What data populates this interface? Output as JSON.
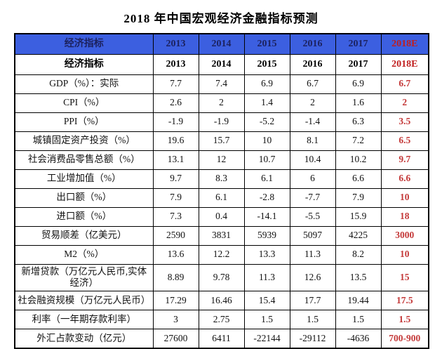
{
  "title": "2018 年中国宏观经济金融指标预测",
  "colors": {
    "header_background": "#3C5FE0",
    "header_text_navy": "#1C2260",
    "forecast_header_red": "#C01E1E",
    "forecast_value_red": "#C43939",
    "border_black": "#000000"
  },
  "chart_data": {
    "type": "table",
    "title": "2018 年中国宏观经济金融指标预测",
    "columns": [
      "经济指标",
      "2013",
      "2014",
      "2015",
      "2016",
      "2017",
      "2018E"
    ],
    "header_repeated": true,
    "forecast_column": "2018E",
    "rows": [
      {
        "label": "GDP（%）：实际",
        "values": [
          "7.7",
          "7.4",
          "6.9",
          "6.7",
          "6.9"
        ],
        "forecast": "6.7"
      },
      {
        "label": "CPI（%）",
        "values": [
          "2.6",
          "2",
          "1.4",
          "2",
          "1.6"
        ],
        "forecast": "2"
      },
      {
        "label": "PPI（%）",
        "values": [
          "-1.9",
          "-1.9",
          "-5.2",
          "-1.4",
          "6.3"
        ],
        "forecast": "3.5"
      },
      {
        "label": "城镇固定资产投资（%）",
        "values": [
          "19.6",
          "15.7",
          "10",
          "8.1",
          "7.2"
        ],
        "forecast": "6.5"
      },
      {
        "label": "社会消费品零售总额（%）",
        "values": [
          "13.1",
          "12",
          "10.7",
          "10.4",
          "10.2"
        ],
        "forecast": "9.7"
      },
      {
        "label": "工业增加值（%）",
        "values": [
          "9.7",
          "8.3",
          "6.1",
          "6",
          "6.6"
        ],
        "forecast": "6.6"
      },
      {
        "label": "出口额（%）",
        "values": [
          "7.9",
          "6.1",
          "-2.8",
          "-7.7",
          "7.9"
        ],
        "forecast": "10"
      },
      {
        "label": "进口额（%）",
        "values": [
          "7.3",
          "0.4",
          "-14.1",
          "-5.5",
          "15.9"
        ],
        "forecast": "18"
      },
      {
        "label": "贸易顺差（亿美元）",
        "values": [
          "2590",
          "3831",
          "5939",
          "5097",
          "4225"
        ],
        "forecast": "3000"
      },
      {
        "label": "M2（%）",
        "values": [
          "13.6",
          "12.2",
          "13.3",
          "11.3",
          "8.2"
        ],
        "forecast": "10"
      },
      {
        "label": "新增贷款（万亿元人民币,实体经济）",
        "values": [
          "8.89",
          "9.78",
          "11.3",
          "12.6",
          "13.5"
        ],
        "forecast": "15"
      },
      {
        "label": "社会融资规模（万亿元人民币）",
        "values": [
          "17.29",
          "16.46",
          "15.4",
          "17.7",
          "19.44"
        ],
        "forecast": "17.5"
      },
      {
        "label": "利率（一年期存款利率）",
        "values": [
          "3",
          "2.75",
          "1.5",
          "1.5",
          "1.5"
        ],
        "forecast": "1.5"
      },
      {
        "label": "外汇占款变动（亿元）",
        "values": [
          "27600",
          "6411",
          "-22144",
          "-29112",
          "-4636"
        ],
        "forecast": "700-900"
      }
    ]
  }
}
